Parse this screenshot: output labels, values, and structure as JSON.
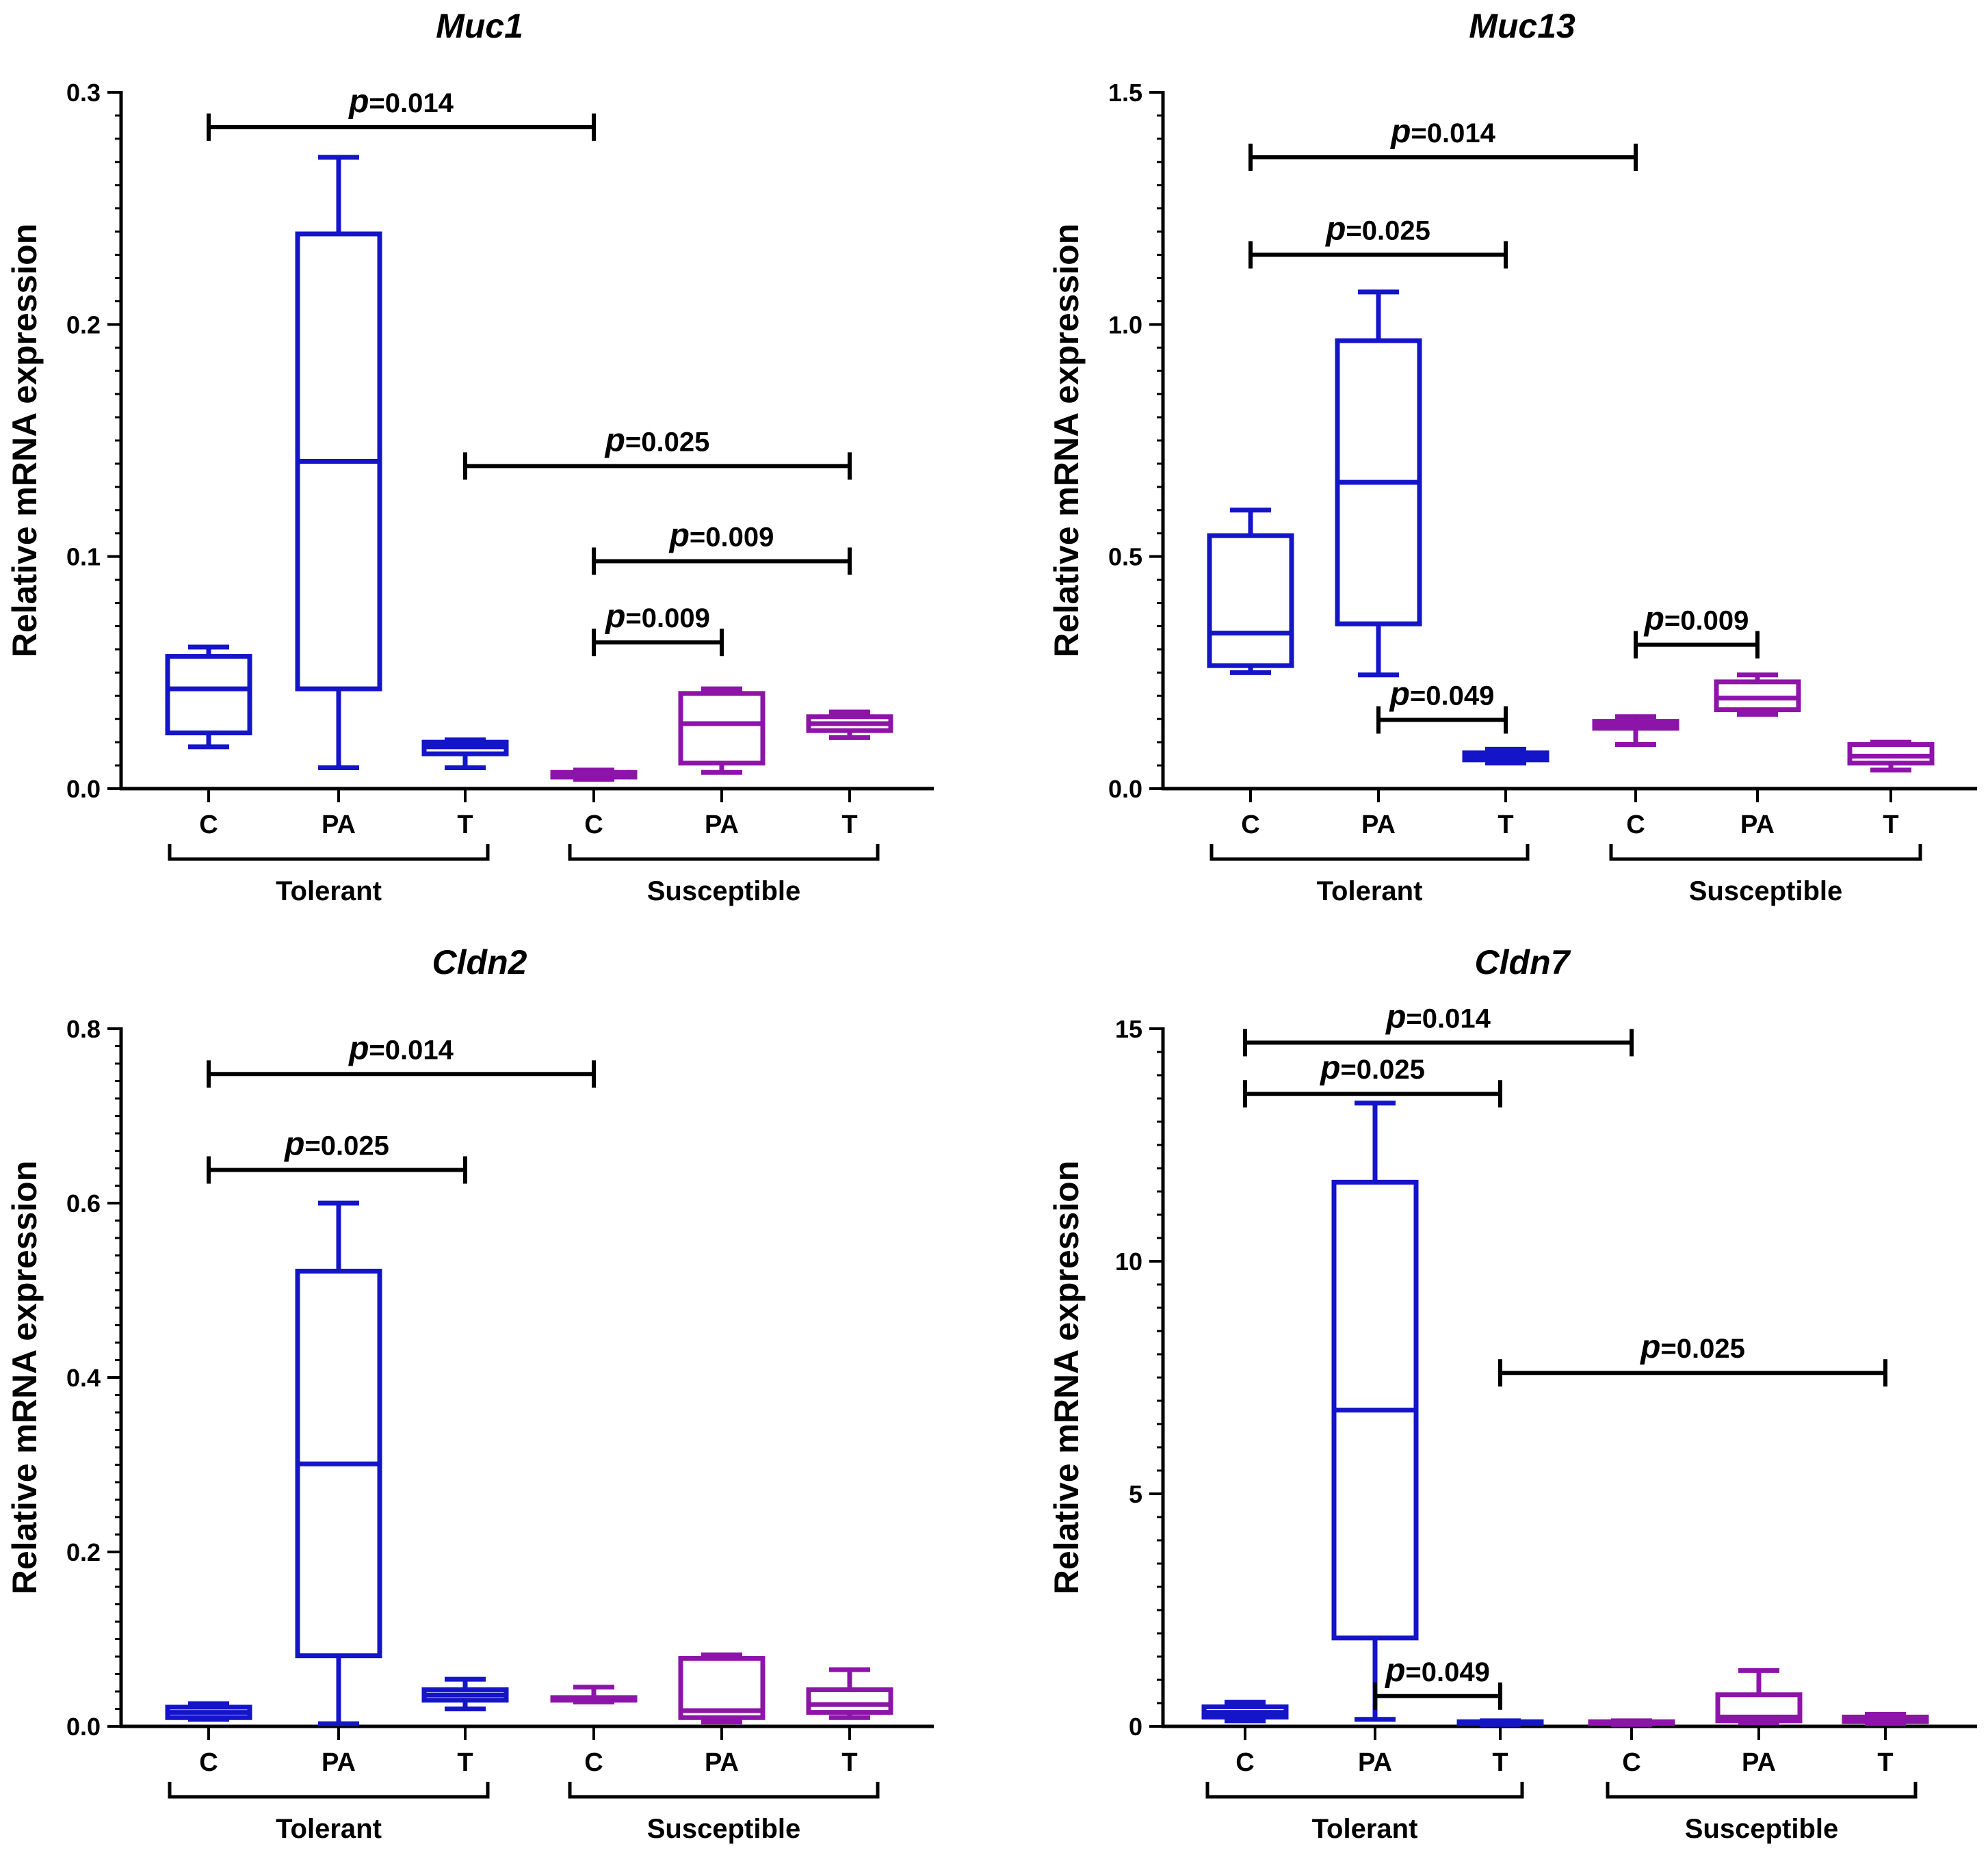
{
  "figure": {
    "colors": {
      "tolerant": "#1414c8",
      "susceptible": "#8c14a8",
      "axis": "#000000"
    }
  },
  "chart_data": [
    {
      "type": "box",
      "title": "Muc1",
      "ylabel": "Relative mRNA expression",
      "ylim": [
        0,
        0.3
      ],
      "yticks": [
        "0.0",
        "0.1",
        "0.2",
        "0.3"
      ],
      "ytick_values": [
        0,
        0.1,
        0.2,
        0.3
      ],
      "categories": [
        "C",
        "PA",
        "T",
        "C",
        "PA",
        "T"
      ],
      "groups": [
        {
          "label": "Tolerant",
          "from": 0,
          "to": 2
        },
        {
          "label": "Susceptible",
          "from": 3,
          "to": 5
        }
      ],
      "series": [
        {
          "name": "Tolerant C",
          "group": "Tolerant",
          "min": 0.018,
          "q1": 0.024,
          "median": 0.043,
          "q3": 0.057,
          "max": 0.061
        },
        {
          "name": "Tolerant PA",
          "group": "Tolerant",
          "min": 0.009,
          "q1": 0.043,
          "median": 0.141,
          "q3": 0.239,
          "max": 0.272
        },
        {
          "name": "Tolerant T",
          "group": "Tolerant",
          "min": 0.009,
          "q1": 0.015,
          "median": 0.018,
          "q3": 0.02,
          "max": 0.021
        },
        {
          "name": "Susceptible C",
          "group": "Susceptible",
          "min": 0.004,
          "q1": 0.005,
          "median": 0.006,
          "q3": 0.007,
          "max": 0.008
        },
        {
          "name": "Susceptible PA",
          "group": "Susceptible",
          "min": 0.007,
          "q1": 0.011,
          "median": 0.028,
          "q3": 0.041,
          "max": 0.043
        },
        {
          "name": "Susceptible T",
          "group": "Susceptible",
          "min": 0.022,
          "q1": 0.025,
          "median": 0.028,
          "q3": 0.031,
          "max": 0.033
        }
      ],
      "annotations": [
        {
          "label": "p",
          "value": "=0.014",
          "from": 0,
          "to": 3,
          "y": 0.285
        },
        {
          "label": "p",
          "value": "=0.025",
          "from": 2,
          "to": 5,
          "y": 0.139
        },
        {
          "label": "p",
          "value": "=0.009",
          "from": 3,
          "to": 5,
          "y": 0.098
        },
        {
          "label": "p",
          "value": "=0.009",
          "from": 3,
          "to": 4,
          "y": 0.063
        }
      ]
    },
    {
      "type": "box",
      "title": "Muc13",
      "ylabel": "Relative mRNA expression",
      "ylim": [
        0,
        1.5
      ],
      "yticks": [
        "0.0",
        "0.5",
        "1.0",
        "1.5"
      ],
      "ytick_values": [
        0,
        0.5,
        1.0,
        1.5
      ],
      "categories": [
        "C",
        "PA",
        "T",
        "C",
        "PA",
        "T"
      ],
      "groups": [
        {
          "label": "Tolerant",
          "from": 0,
          "to": 2
        },
        {
          "label": "Susceptible",
          "from": 3,
          "to": 5
        }
      ],
      "series": [
        {
          "name": "Tolerant C",
          "group": "Tolerant",
          "min": 0.25,
          "q1": 0.265,
          "median": 0.335,
          "q3": 0.545,
          "max": 0.6
        },
        {
          "name": "Tolerant PA",
          "group": "Tolerant",
          "min": 0.245,
          "q1": 0.355,
          "median": 0.66,
          "q3": 0.965,
          "max": 1.07
        },
        {
          "name": "Tolerant T",
          "group": "Tolerant",
          "min": 0.055,
          "q1": 0.062,
          "median": 0.07,
          "q3": 0.077,
          "max": 0.085
        },
        {
          "name": "Susceptible C",
          "group": "Susceptible",
          "min": 0.095,
          "q1": 0.13,
          "median": 0.14,
          "q3": 0.145,
          "max": 0.155
        },
        {
          "name": "Susceptible PA",
          "group": "Susceptible",
          "min": 0.16,
          "q1": 0.17,
          "median": 0.195,
          "q3": 0.23,
          "max": 0.245
        },
        {
          "name": "Susceptible T",
          "group": "Susceptible",
          "min": 0.04,
          "q1": 0.055,
          "median": 0.07,
          "q3": 0.095,
          "max": 0.1
        }
      ],
      "annotations": [
        {
          "label": "p",
          "value": "=0.014",
          "from": 0,
          "to": 3,
          "y": 1.36
        },
        {
          "label": "p",
          "value": "=0.025",
          "from": 0,
          "to": 2,
          "y": 1.15
        },
        {
          "label": "p",
          "value": "=0.049",
          "from": 1,
          "to": 2,
          "y": 0.148
        },
        {
          "label": "p",
          "value": "=0.009",
          "from": 3,
          "to": 4,
          "y": 0.31
        }
      ]
    },
    {
      "type": "box",
      "title": "Cldn2",
      "ylabel": "Relative mRNA expression",
      "ylim": [
        0,
        0.8
      ],
      "yticks": [
        "0.0",
        "0.2",
        "0.4",
        "0.6",
        "0.8"
      ],
      "ytick_values": [
        0,
        0.2,
        0.4,
        0.6,
        0.8
      ],
      "categories": [
        "C",
        "PA",
        "T",
        "C",
        "PA",
        "T"
      ],
      "groups": [
        {
          "label": "Tolerant",
          "from": 0,
          "to": 2
        },
        {
          "label": "Susceptible",
          "from": 3,
          "to": 5
        }
      ],
      "series": [
        {
          "name": "Tolerant C",
          "group": "Tolerant",
          "min": 0.008,
          "q1": 0.01,
          "median": 0.016,
          "q3": 0.022,
          "max": 0.026
        },
        {
          "name": "Tolerant PA",
          "group": "Tolerant",
          "min": 0.003,
          "q1": 0.081,
          "median": 0.301,
          "q3": 0.522,
          "max": 0.6
        },
        {
          "name": "Tolerant T",
          "group": "Tolerant",
          "min": 0.02,
          "q1": 0.03,
          "median": 0.036,
          "q3": 0.042,
          "max": 0.054
        },
        {
          "name": "Susceptible C",
          "group": "Susceptible",
          "min": 0.028,
          "q1": 0.03,
          "median": 0.031,
          "q3": 0.033,
          "max": 0.045
        },
        {
          "name": "Susceptible PA",
          "group": "Susceptible",
          "min": 0.005,
          "q1": 0.01,
          "median": 0.018,
          "q3": 0.078,
          "max": 0.082
        },
        {
          "name": "Susceptible T",
          "group": "Susceptible",
          "min": 0.01,
          "q1": 0.016,
          "median": 0.025,
          "q3": 0.042,
          "max": 0.065
        }
      ],
      "annotations": [
        {
          "label": "p",
          "value": "=0.014",
          "from": 0,
          "to": 3,
          "y": 0.748
        },
        {
          "label": "p",
          "value": "=0.025",
          "from": 0,
          "to": 2,
          "y": 0.638
        }
      ]
    },
    {
      "type": "box",
      "title": "Cldn7",
      "ylabel": "Relative mRNA expression",
      "ylim": [
        0,
        15
      ],
      "yticks": [
        "0",
        "5",
        "10",
        "15"
      ],
      "ytick_values": [
        0,
        5,
        10,
        15
      ],
      "categories": [
        "C",
        "PA",
        "T",
        "C",
        "PA",
        "T"
      ],
      "groups": [
        {
          "label": "Tolerant",
          "from": 0,
          "to": 2
        },
        {
          "label": "Susceptible",
          "from": 3,
          "to": 5
        }
      ],
      "series": [
        {
          "name": "Tolerant C",
          "group": "Tolerant",
          "min": 0.12,
          "q1": 0.2,
          "median": 0.3,
          "q3": 0.42,
          "max": 0.52
        },
        {
          "name": "Tolerant PA",
          "group": "Tolerant",
          "min": 0.15,
          "q1": 1.9,
          "median": 6.8,
          "q3": 11.7,
          "max": 13.4
        },
        {
          "name": "Tolerant T",
          "group": "Tolerant",
          "min": 0.04,
          "q1": 0.06,
          "median": 0.08,
          "q3": 0.1,
          "max": 0.12
        },
        {
          "name": "Susceptible C",
          "group": "Susceptible",
          "min": 0.04,
          "q1": 0.06,
          "median": 0.08,
          "q3": 0.1,
          "max": 0.12
        },
        {
          "name": "Susceptible PA",
          "group": "Susceptible",
          "min": 0.08,
          "q1": 0.12,
          "median": 0.2,
          "q3": 0.68,
          "max": 1.2
        },
        {
          "name": "Susceptible T",
          "group": "Susceptible",
          "min": 0.06,
          "q1": 0.1,
          "median": 0.14,
          "q3": 0.2,
          "max": 0.26
        }
      ],
      "annotations": [
        {
          "label": "p",
          "value": "=0.014",
          "from": 0,
          "to": 3,
          "y": 14.7
        },
        {
          "label": "p",
          "value": "=0.025",
          "from": 0,
          "to": 2,
          "y": 13.6
        },
        {
          "label": "p",
          "value": "=0.025",
          "from": 2,
          "to": 5,
          "y": 7.6
        },
        {
          "label": "p",
          "value": "=0.049",
          "from": 1,
          "to": 2,
          "y": 0.65
        }
      ]
    }
  ]
}
